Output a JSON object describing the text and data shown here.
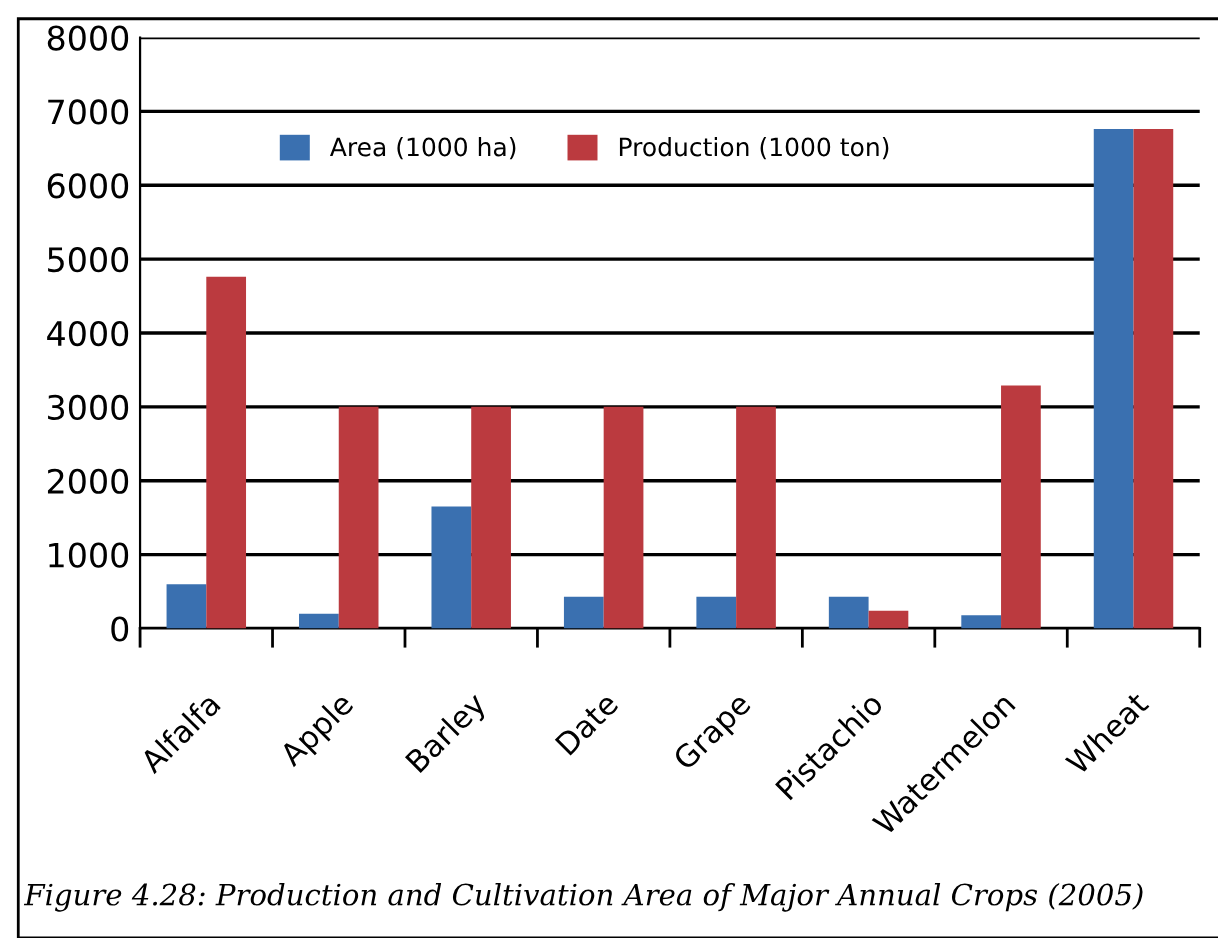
{
  "chart_data": {
    "type": "bar",
    "categories": [
      "Alfalfa",
      "Apple",
      "Barley",
      "Date",
      "Grape",
      "Pistachio",
      "Watermelon",
      "Wheat"
    ],
    "series": [
      {
        "name": "Area (1000 ha)",
        "color": "#3a70b0",
        "values": [
          600,
          200,
          1650,
          430,
          430,
          430,
          180,
          6760
        ]
      },
      {
        "name": "Production (1000 ton)",
        "color": "#bb3a3f",
        "values": [
          4760,
          3000,
          3000,
          3000,
          3000,
          240,
          3290,
          6760
        ]
      }
    ],
    "ylim": [
      0,
      8000
    ],
    "yticks": [
      0,
      1000,
      2000,
      3000,
      4000,
      5000,
      6000,
      7000,
      8000
    ],
    "grid": "y",
    "legend": "top",
    "annotations": [
      "Figure 4.28: Production and Cultivation Area of Major Annual Crops (2005)"
    ]
  }
}
